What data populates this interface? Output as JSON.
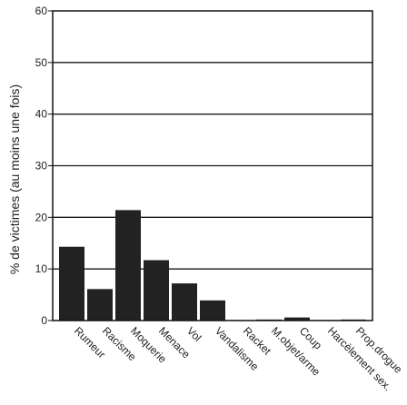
{
  "chart_data": {
    "type": "bar",
    "categories": [
      "Rumeur",
      "Racisme",
      "Moquerie",
      "Menace",
      "Vol",
      "Vandalisme",
      "Racket",
      "M.objet/arme",
      "Coup",
      "Harcèlement sex.",
      "Prop.drogue"
    ],
    "values": [
      14.3,
      6.1,
      21.4,
      11.7,
      7.2,
      3.9,
      0.1,
      0.2,
      0.6,
      0.1,
      0.2
    ],
    "title": "",
    "xlabel": "",
    "ylabel": "% de victimes (au moins une fois)",
    "ylim": [
      0,
      60
    ],
    "yticks": [
      0,
      10,
      20,
      30,
      40,
      50,
      60
    ],
    "grid": true,
    "colors": {
      "bar": "#222222",
      "grid": "#1a1a1a",
      "axis": "#111111"
    }
  }
}
